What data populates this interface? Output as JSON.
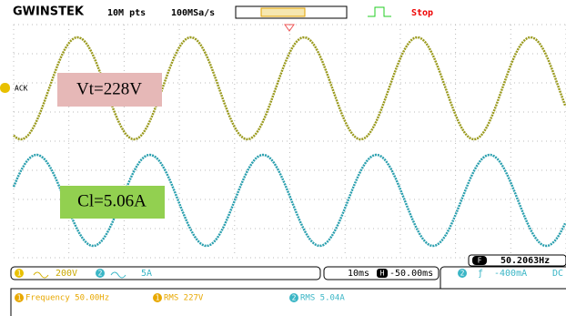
{
  "header": {
    "logo": "GWINSTEK",
    "memory": "10M pts",
    "sample_rate": "100MSa/s",
    "status": "Stop"
  },
  "screen": {
    "ch1_label": "ACK",
    "voltage_note": "Vt=228V",
    "current_note": "Cl=5.06A",
    "frequency_marker": "F",
    "frequency": "50.2063Hz"
  },
  "status_bar": {
    "ch1_marker": "1",
    "ch1_scale": "200V",
    "ch2_marker": "2",
    "ch2_scale": "5A",
    "timebase": "10ms",
    "h_marker": "H",
    "position": "-50.00ms",
    "trig_source": "2",
    "trig_level": "-400mA",
    "coupling": "DC"
  },
  "measurements": [
    {
      "marker": "1",
      "text": "Frequency 50.00Hz"
    },
    {
      "marker": "1",
      "text": "RMS 227V"
    },
    {
      "marker": "2",
      "text": "RMS 5.04A"
    }
  ]
}
